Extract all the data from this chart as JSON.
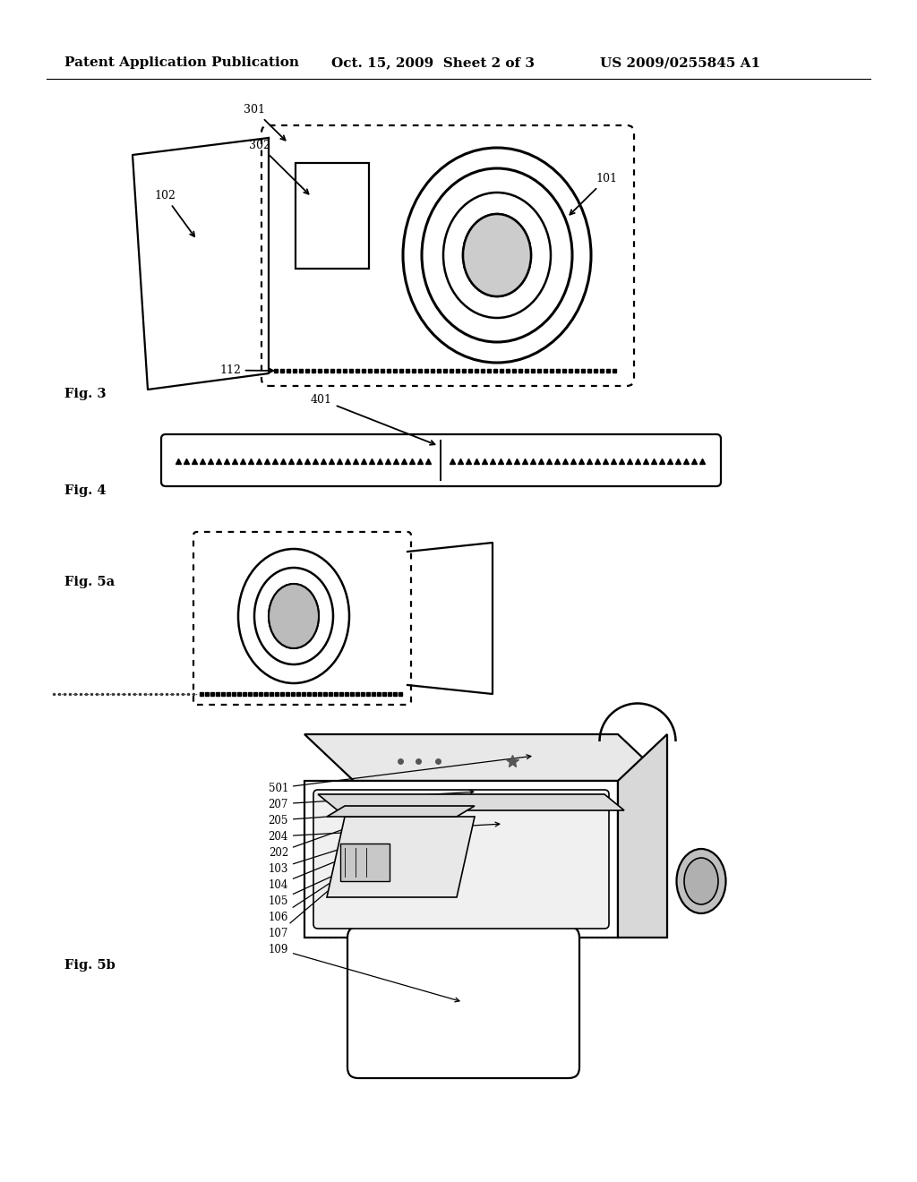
{
  "background_color": "#ffffff",
  "header_left": "Patent Application Publication",
  "header_center": "Oct. 15, 2009  Sheet 2 of 3",
  "header_right": "US 2009/0255845 A1",
  "header_fontsize": 11
}
